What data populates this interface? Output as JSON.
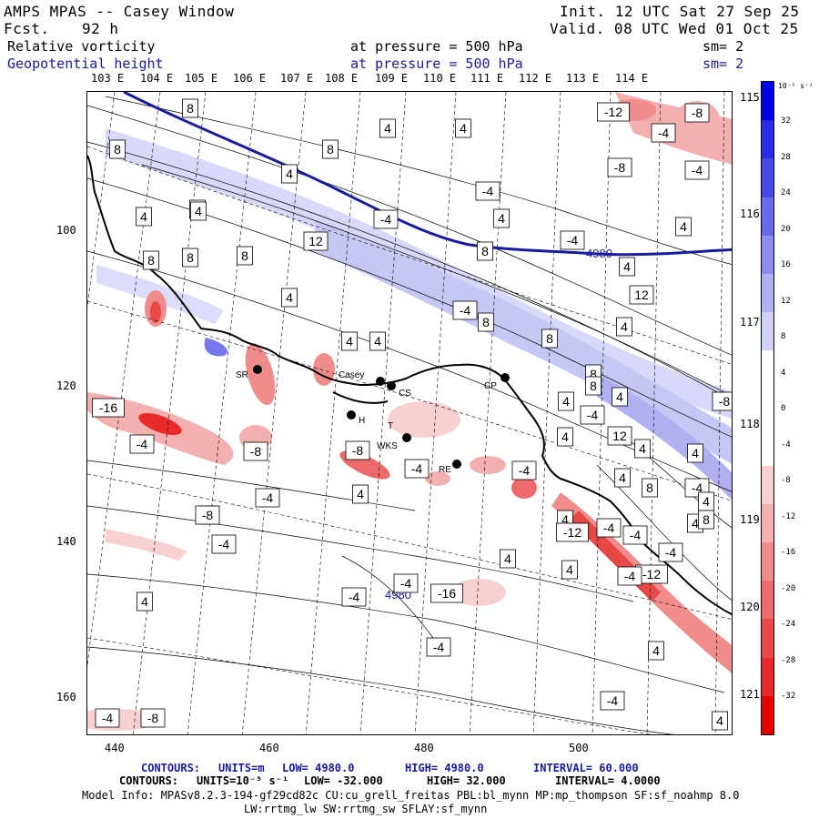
{
  "header": {
    "title": "AMPS MPAS -- Casey Window",
    "fcst_label": "Fcst.",
    "fcst_value": "92 h",
    "init": "Init. 12 UTC Sat 27 Sep 25",
    "valid": "Valid. 08 UTC Wed 01 Oct 25",
    "field1_name": "Relative vorticity",
    "field1_level": "at pressure =  500 hPa",
    "field1_sm": "sm= 2",
    "field2_name": "Geopotential height",
    "field2_level": "at pressure =  500 hPa",
    "field2_sm": "sm= 2"
  },
  "map": {
    "lon_labels_top": [
      "103 E",
      "104 E",
      "105 E",
      "106 E",
      "107 E",
      "108 E",
      "109 E",
      "110 E",
      "111 E",
      "112 E",
      "113 E",
      "114 E"
    ],
    "lon_labels_right": [
      "115 E",
      "116 E",
      "117 E",
      "118 E",
      "119 E",
      "120 E",
      "121 E"
    ],
    "x_ticks": [
      "440",
      "460",
      "480",
      "500"
    ],
    "y_ticks": [
      "100",
      "120",
      "140",
      "160"
    ],
    "stations": [
      "SR",
      "Casey",
      "CS",
      "CP",
      "H",
      "T",
      "WKS",
      "RE"
    ],
    "height_contour_labels": [
      "4980",
      "4980"
    ],
    "vorticity_labels": [
      "8",
      "8",
      "4",
      "8",
      "4",
      "4",
      "-4",
      "8",
      "4",
      "4",
      "-12",
      "-8",
      "-4",
      "-8",
      "-4",
      "4",
      "-4",
      "4",
      "4",
      "8",
      "4",
      "8",
      "12",
      "-4",
      "8",
      "4",
      "-4",
      "12",
      "8",
      "4",
      "4",
      "4",
      "8",
      "4",
      "4",
      "-4",
      "-16",
      "-4",
      "-8",
      "-8",
      "-4",
      "4",
      "-4",
      "-4",
      "8",
      "8",
      "4",
      "4",
      "8",
      "4",
      "4",
      "-8",
      "-4",
      "4",
      "-4",
      "-4",
      "-12",
      "-4",
      "4",
      "-12",
      "-4",
      "4",
      "-4",
      "-16",
      "4",
      "-4",
      "4",
      "-4",
      "4",
      "-4",
      "-4",
      "-8",
      "-8",
      "-4",
      "4",
      "12",
      "4",
      "8",
      "8"
    ]
  },
  "colorbar": {
    "units": "10⁻⁵ s⁻¹",
    "ticks": [
      "32",
      "28",
      "24",
      "20",
      "16",
      "12",
      "8",
      "4",
      "0",
      "-4",
      "-8",
      "-12",
      "-16",
      "-20",
      "-24",
      "-28",
      "-32"
    ],
    "colors": [
      "#0000e6",
      "#2a2ae8",
      "#4848ea",
      "#6a6aed",
      "#8c8cf0",
      "#b0b0f4",
      "#d0d0f8",
      "#ffffff",
      "#ffffff",
      "#ffffff",
      "#f8d0d0",
      "#f4b0b0",
      "#f08c8c",
      "#ed6a6a",
      "#ea4848",
      "#e82a2a",
      "#e60000"
    ]
  },
  "footer": {
    "line1_label": "CONTOURS:",
    "line1_units": "UNITS=m",
    "line1_low": "LOW=   4980.0",
    "line1_high": "HIGH=  4980.0",
    "line1_interval": "INTERVAL=   60.000",
    "line2_label": "CONTOURS:",
    "line2_units": "UNITS=10⁻⁵ s⁻¹",
    "line2_low": "LOW= -32.000",
    "line2_high": "HIGH=  32.000",
    "line2_interval": "INTERVAL=   4.0000",
    "model_info": "Model Info: MPASv8.2.3-194-gf29cd82c CU:cu_grell_freitas PBL:bl_mynn MP:mp_thompson SF:sf_noahmp 8.0",
    "model_info2": "LW:rrtmg_lw SW:rrtmg_sw SFLAY:sf_mynn"
  }
}
